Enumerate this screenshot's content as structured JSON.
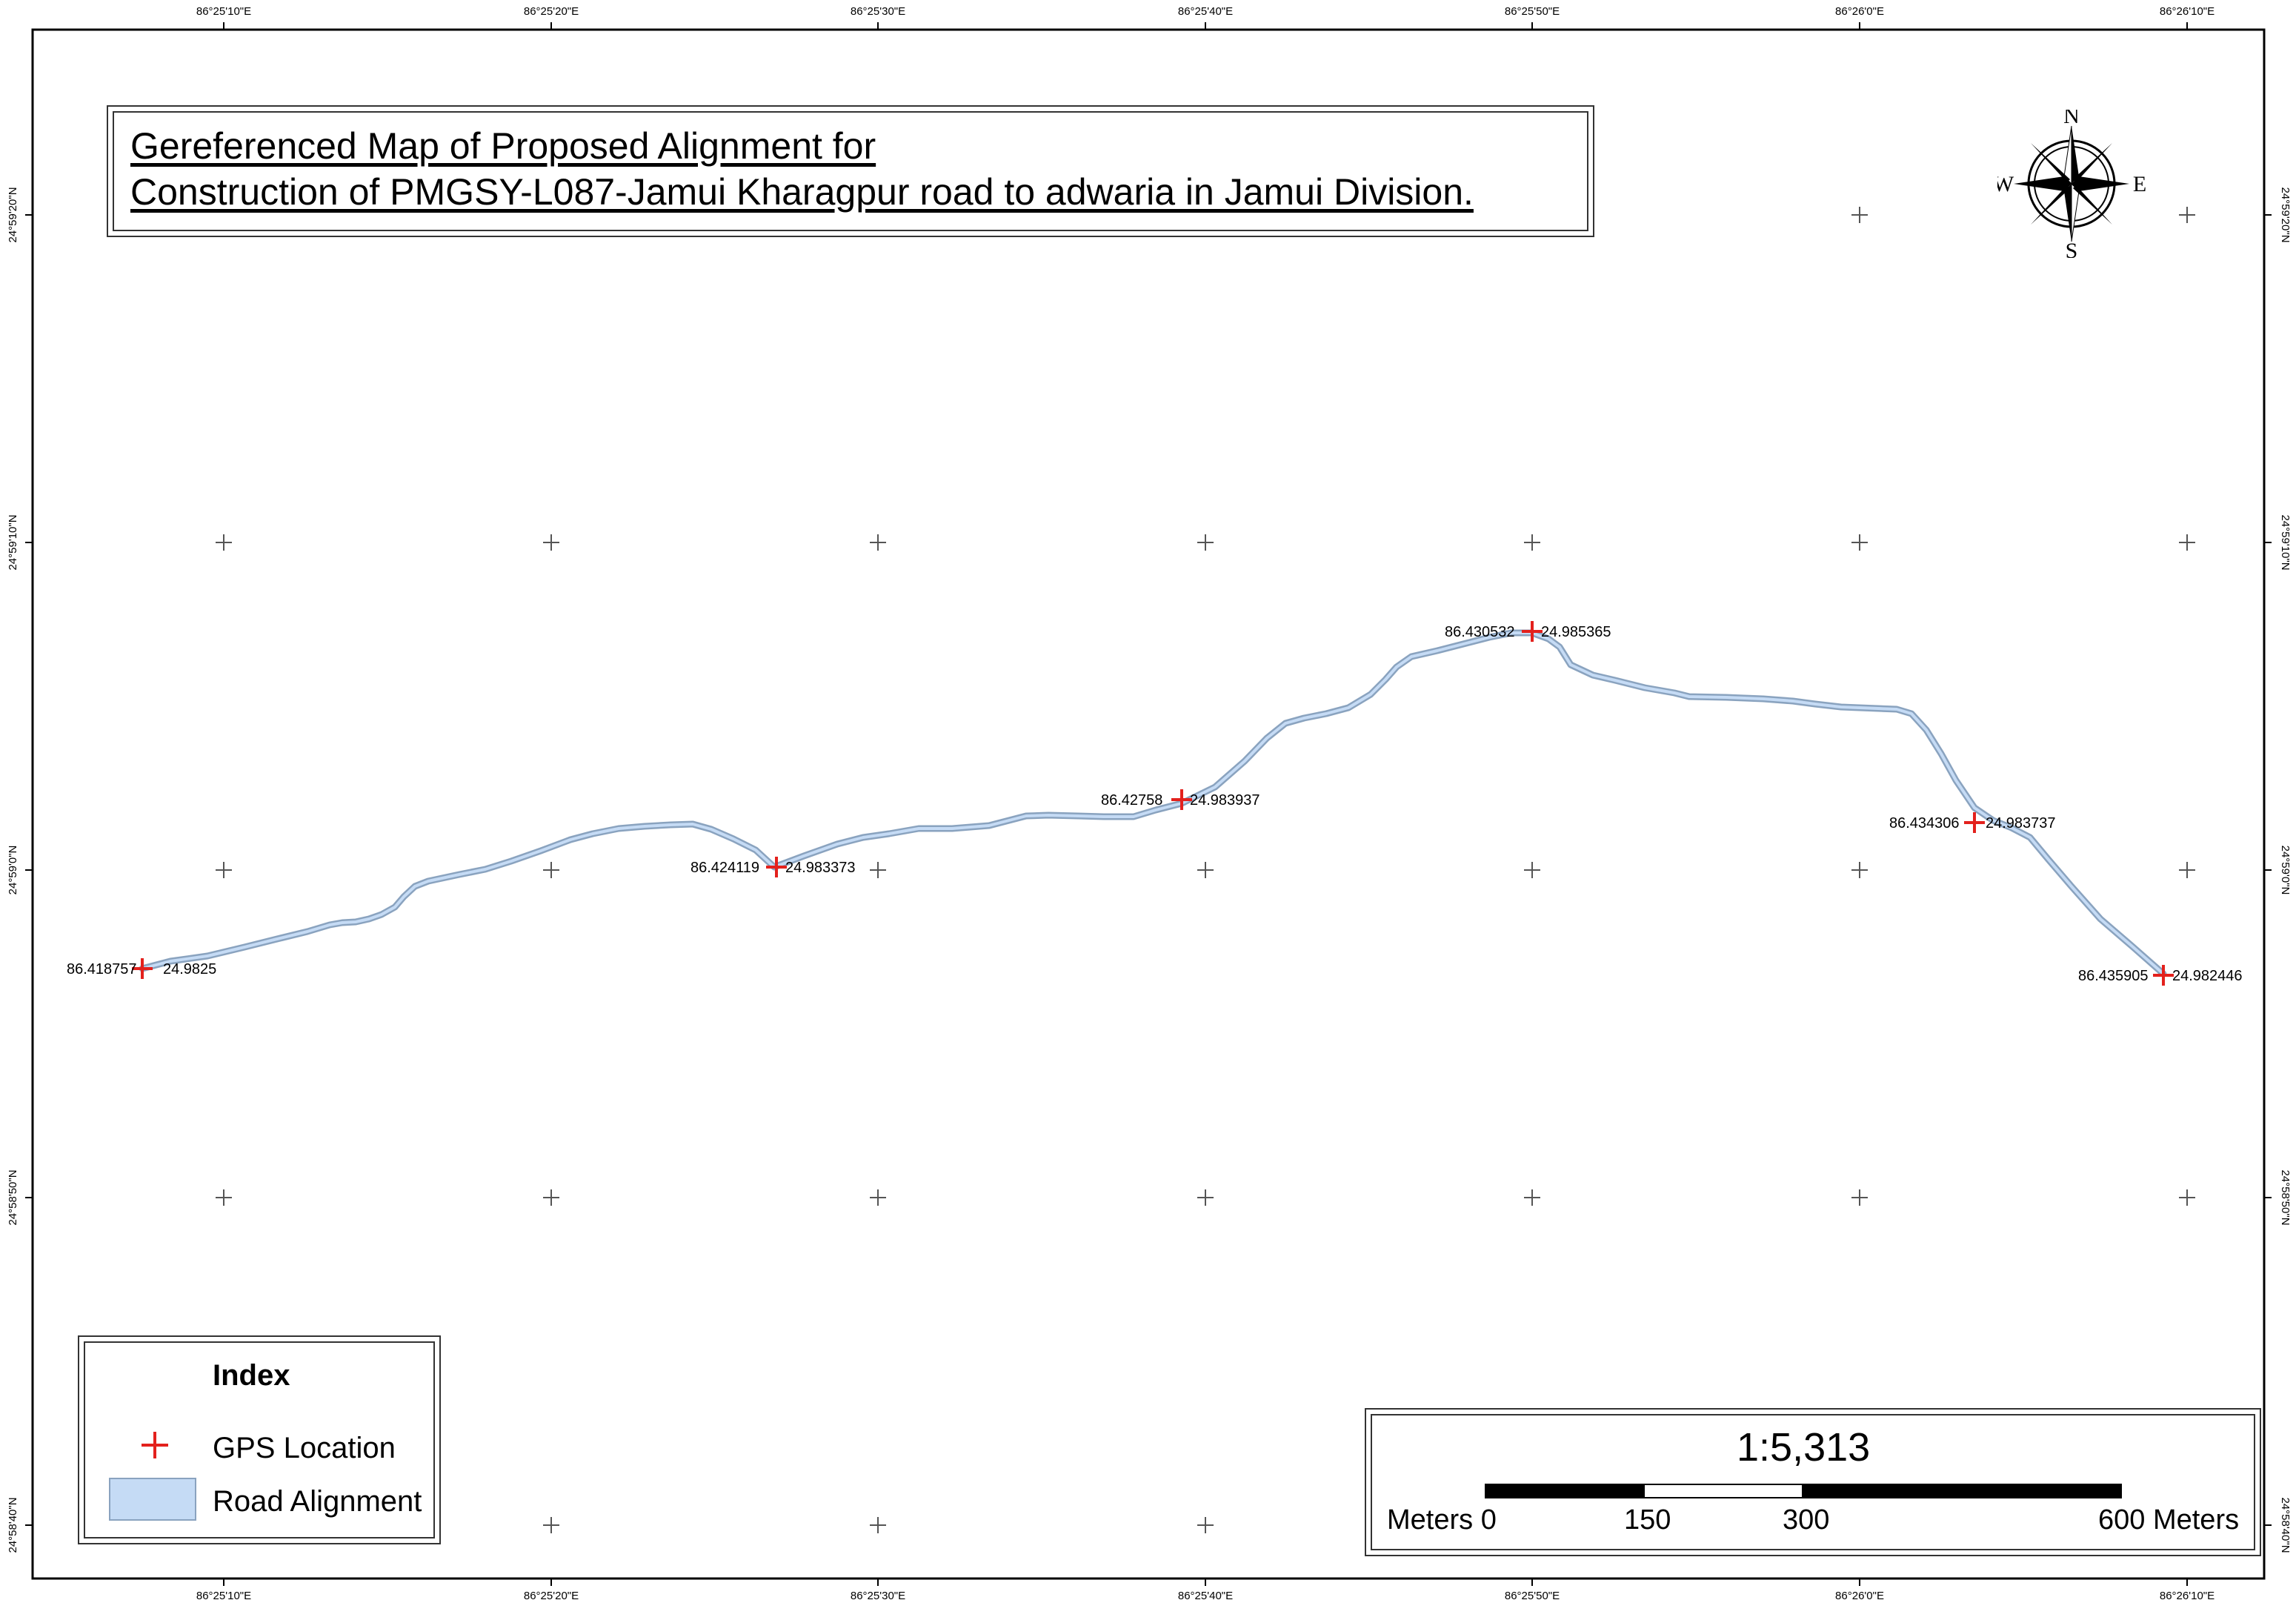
{
  "map": {
    "title_line1": "Gereferenced Map of Proposed Alignment for",
    "title_line2": "Construction of PMGSY-L087-Jamui Kharagpur road to adwaria in Jamui Division."
  },
  "longitude_ticks": [
    "86°25'10\"E",
    "86°25'20\"E",
    "86°25'30\"E",
    "86°25'40\"E",
    "86°25'50\"E",
    "86°26'0\"E",
    "86°26'10\"E"
  ],
  "latitude_ticks": [
    "24°59'20\"N",
    "24°59'10\"N",
    "24°59'0\"N",
    "24°58'50\"N",
    "24°58'40\"N"
  ],
  "gps_points": [
    {
      "lon": "86.418757",
      "lat": "24.9825"
    },
    {
      "lon": "86.424119",
      "lat": "24.983373"
    },
    {
      "lon": "86.42758",
      "lat": "24.983937"
    },
    {
      "lon": "86.430532",
      "lat": "24.985365"
    },
    {
      "lon": "86.434306",
      "lat": "24.983737"
    },
    {
      "lon": "86.435905",
      "lat": "24.982446"
    }
  ],
  "legend": {
    "title": "Index",
    "gps_label": "GPS Location",
    "road_label": "Road Alignment"
  },
  "scale": {
    "ratio": "1:5,313",
    "label_0": "Meters 0",
    "label_150": "150",
    "label_300": "300",
    "label_600": "600 Meters"
  },
  "compass": {
    "n": "N",
    "s": "S",
    "e": "E",
    "w": "W"
  },
  "colors": {
    "gps_marker": "#e3211d",
    "road_fill": "#c5dbf5",
    "road_edge": "#8aa3bf",
    "frame": "#000000"
  }
}
